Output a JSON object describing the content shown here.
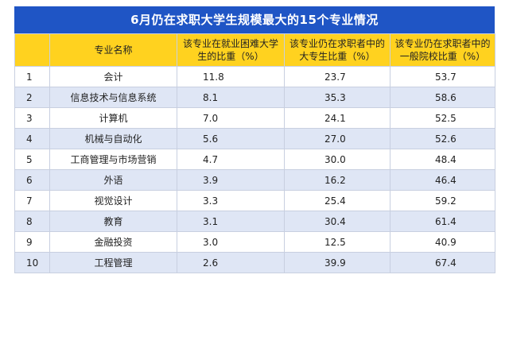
{
  "title": "6月仍在求职大学生规模最大的15个专业情况",
  "columns": [
    "",
    "专业名称",
    "该专业在就业困难大学生的比重（%）",
    "该专业仍在求职者中的大专生比重（%）",
    "该专业仍在求职者中的一般院校比重（%）"
  ],
  "rows": [
    {
      "no": "1",
      "name": "会计",
      "v1": "11.8",
      "v2": "23.7",
      "v3": "53.7"
    },
    {
      "no": "2",
      "name": "信息技术与信息系统",
      "v1": "8.1",
      "v2": "35.3",
      "v3": "58.6"
    },
    {
      "no": "3",
      "name": "计算机",
      "v1": "7.0",
      "v2": "24.1",
      "v3": "52.5"
    },
    {
      "no": "4",
      "name": "机械与自动化",
      "v1": "5.6",
      "v2": "27.0",
      "v3": "52.6"
    },
    {
      "no": "5",
      "name": "工商管理与市场营销",
      "v1": "4.7",
      "v2": "30.0",
      "v3": "48.4"
    },
    {
      "no": "6",
      "name": "外语",
      "v1": "3.9",
      "v2": "16.2",
      "v3": "46.4"
    },
    {
      "no": "7",
      "name": "视觉设计",
      "v1": "3.3",
      "v2": "25.4",
      "v3": "59.2"
    },
    {
      "no": "8",
      "name": "教育",
      "v1": "3.1",
      "v2": "30.4",
      "v3": "61.4"
    },
    {
      "no": "9",
      "name": "金融投资",
      "v1": "3.0",
      "v2": "12.5",
      "v3": "40.9"
    },
    {
      "no": "10",
      "name": "工程管理",
      "v1": "2.6",
      "v2": "39.9",
      "v3": "67.4"
    }
  ],
  "colors": {
    "title_bg": "#1f55c5",
    "header_bg": "#ffd21f",
    "stripe_bg": "#dfe6f5"
  }
}
